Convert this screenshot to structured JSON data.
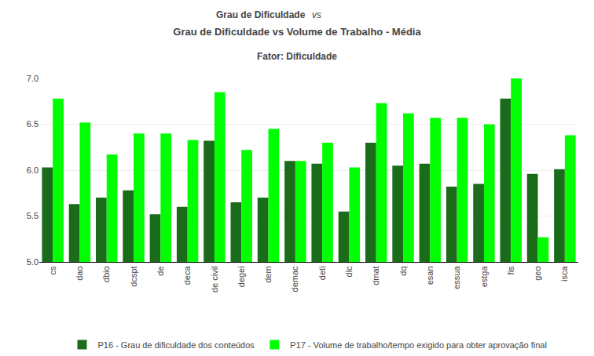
{
  "chart_data": {
    "type": "bar",
    "title": "Grau de Dificuldade vs Volume de Trabalho - Média",
    "subtitle": "Fator: Dificuldade",
    "annotations": [
      "Grau de Dificuldade",
      "vs"
    ],
    "categories": [
      "cs",
      "dao",
      "dbio",
      "dcspt",
      "de",
      "deca",
      "de civil",
      "degei",
      "dem",
      "demac",
      "deti",
      "dlc",
      "dmat",
      "dq",
      "esan",
      "essua",
      "estga",
      "fis",
      "geo",
      "isca"
    ],
    "series": [
      {
        "name": "P16 - Grau de dificuldade dos conteúdos",
        "color": "#1a6b1a",
        "values": [
          6.03,
          5.63,
          5.7,
          5.78,
          5.52,
          5.6,
          6.32,
          5.65,
          5.7,
          6.1,
          6.07,
          5.55,
          6.3,
          6.05,
          6.07,
          5.82,
          5.85,
          6.78,
          5.96,
          6.01
        ]
      },
      {
        "name": "P17 - Volume de trabalho/tempo exigido para obter aprovação final",
        "color": "#00ff00",
        "values": [
          6.78,
          6.52,
          6.17,
          6.4,
          6.4,
          6.33,
          6.85,
          6.22,
          6.45,
          6.1,
          6.3,
          6.03,
          6.73,
          6.62,
          6.57,
          6.57,
          6.5,
          7.0,
          5.27,
          6.38
        ]
      }
    ],
    "ylim": [
      5.0,
      7.0
    ],
    "yticks": [
      {
        "value": 5.0,
        "label": "5.0"
      },
      5.5,
      {
        "value": 6.0,
        "label": "6.0"
      },
      6.5,
      {
        "value": 7.0,
        "label": "7.0"
      }
    ],
    "grid": true,
    "legend": "bottom"
  }
}
